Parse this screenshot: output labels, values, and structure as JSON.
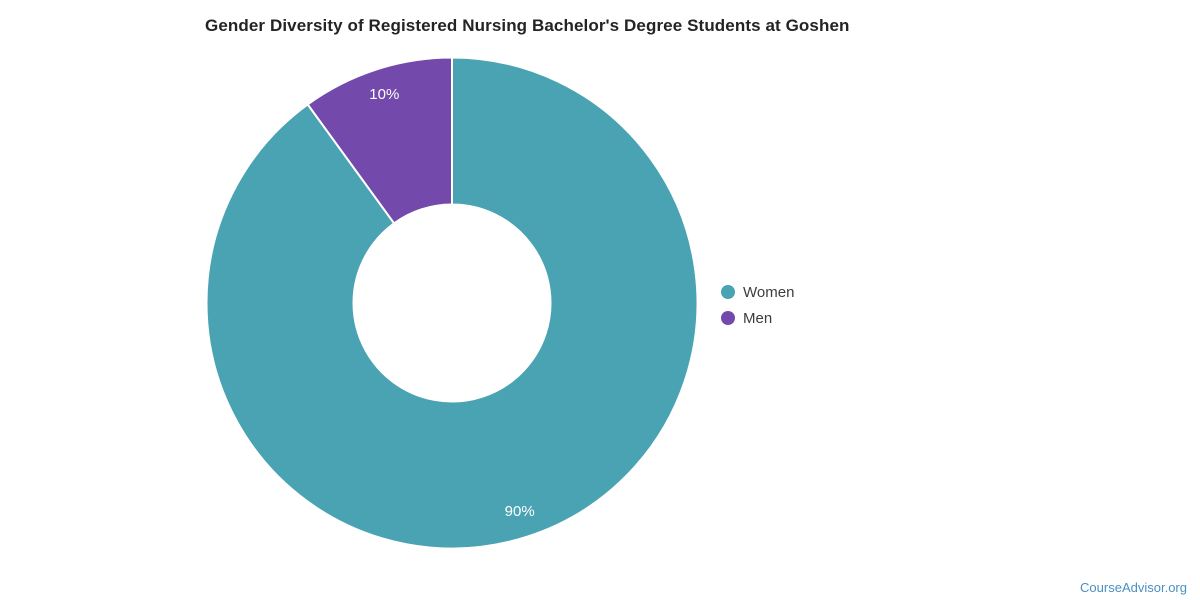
{
  "page": {
    "footer_link": "CourseAdvisor.org"
  },
  "colors": {
    "background": "#ffffff",
    "title_text": "#242424",
    "legend_text": "#3d3d3d",
    "footer_link": "#4a90c2",
    "slice_separator": "#ffffff"
  },
  "chart_data": {
    "type": "pie",
    "subtype": "donut",
    "title": "Gender Diversity of Registered Nursing Bachelor's Degree Students at Goshen",
    "unit": "%",
    "legend_position": "right",
    "start_angle": "top",
    "direction": "clockwise",
    "data_label_color": "#ffffff",
    "series": [
      {
        "name": "Women",
        "value": 90,
        "label": "90%",
        "color": "#4aa3b2"
      },
      {
        "name": "Men",
        "value": 10,
        "label": "10%",
        "color": "#7349ab"
      }
    ]
  }
}
